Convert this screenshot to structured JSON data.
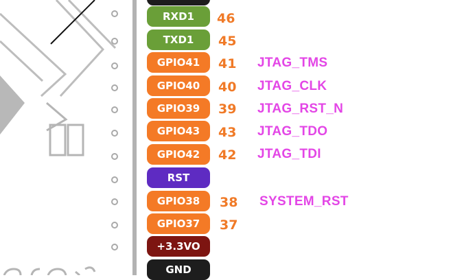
{
  "colors": {
    "rxtx_green": "#6a9f38",
    "gpio_orange": "#f47a26",
    "rst_purple": "#5e2bc2",
    "power_red": "#7d1511",
    "gnd_black": "#1d1d1d",
    "number_orange": "#f07a27",
    "function_magenta": "#e346e6"
  },
  "pins": [
    {
      "label": "RXD1",
      "number": "46",
      "function": "",
      "kind": "uart"
    },
    {
      "label": "TXD1",
      "number": "45",
      "function": "",
      "kind": "uart"
    },
    {
      "label": "GPIO41",
      "number": "41",
      "function": "JTAG_TMS",
      "kind": "gpio"
    },
    {
      "label": "GPIO40",
      "number": "40",
      "function": "JTAG_CLK",
      "kind": "gpio"
    },
    {
      "label": "GPIO39",
      "number": "39",
      "function": "JTAG_RST_N",
      "kind": "gpio"
    },
    {
      "label": "GPIO43",
      "number": "43",
      "function": "JTAG_TDO",
      "kind": "gpio"
    },
    {
      "label": "GPIO42",
      "number": "42",
      "function": "JTAG_TDI",
      "kind": "gpio"
    },
    {
      "label": "RST",
      "number": "",
      "function": "",
      "kind": "reset"
    },
    {
      "label": "GPIO38",
      "number": "38",
      "function": "SYSTEM_RST",
      "kind": "gpio"
    },
    {
      "label": "GPIO37",
      "number": "37",
      "function": "",
      "kind": "gpio"
    },
    {
      "label": "+3.3VO",
      "number": "",
      "function": "",
      "kind": "power"
    },
    {
      "label": "GND",
      "number": "",
      "function": "",
      "kind": "ground"
    }
  ]
}
